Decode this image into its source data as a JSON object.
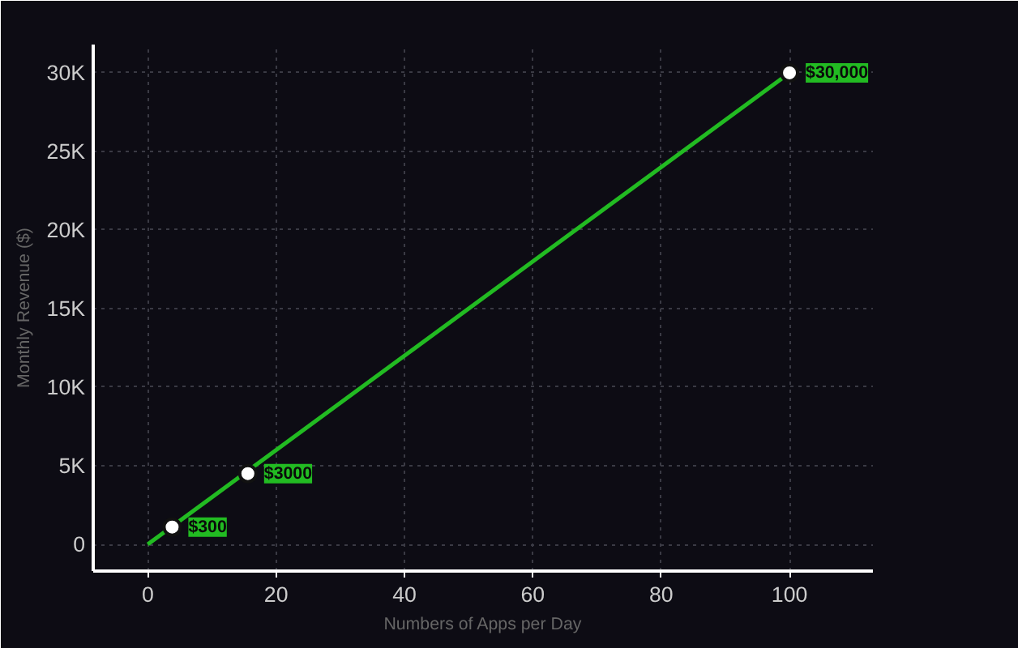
{
  "chart_data": {
    "type": "line",
    "xlabel": "Numbers of Apps per Day",
    "ylabel": "Monthly Revenue ($)",
    "series": [
      {
        "type": "line",
        "color": "#22bb22",
        "x": [
          0,
          100
        ],
        "values": [
          0,
          30000
        ]
      },
      {
        "type": "scatter",
        "marker": "circle",
        "color": "#ffffff",
        "x": [
          3.8,
          15.6,
          100
        ],
        "values": [
          1100,
          4500,
          30000
        ]
      }
    ],
    "annotations": [
      {
        "text": "$300",
        "x": 3.8,
        "y": 1100
      },
      {
        "text": "$3000",
        "x": 15.6,
        "y": 4500
      },
      {
        "text": "$30,000",
        "x": 100,
        "y": 30000
      }
    ],
    "xlim": [
      -8.5,
      113
    ],
    "ylim": [
      -1700,
      31800
    ],
    "xticks": [
      0,
      20,
      40,
      60,
      80,
      100
    ],
    "yticks": [
      {
        "value": 0,
        "label": "0"
      },
      {
        "value": 5000,
        "label": "5K"
      },
      {
        "value": 10000,
        "label": "10K"
      },
      {
        "value": 15000,
        "label": "15K"
      },
      {
        "value": 20000,
        "label": "20K"
      },
      {
        "value": 25000,
        "label": "25K"
      },
      {
        "value": 30000,
        "label": "30K"
      }
    ],
    "grid": true,
    "line_style": "solid"
  }
}
